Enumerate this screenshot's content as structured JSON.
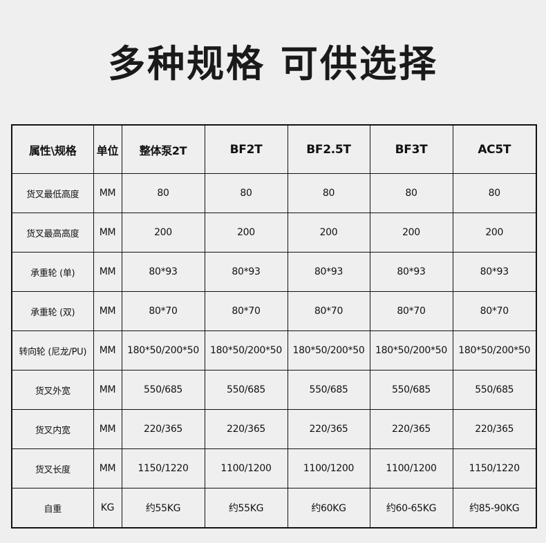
{
  "title": "多种规格 可供选择",
  "table": {
    "headers": [
      "属性\\规格",
      "单位",
      "整体泵2T",
      "BF2T",
      "BF2.5T",
      "BF3T",
      "AC5T"
    ],
    "rows": [
      [
        "货叉最低高度",
        "MM",
        "80",
        "80",
        "80",
        "80",
        "80"
      ],
      [
        "货叉最高高度",
        "MM",
        "200",
        "200",
        "200",
        "200",
        "200"
      ],
      [
        "承重轮 (单)",
        "MM",
        "80*93",
        "80*93",
        "80*93",
        "80*93",
        "80*93"
      ],
      [
        "承重轮 (双)",
        "MM",
        "80*70",
        "80*70",
        "80*70",
        "80*70",
        "80*70"
      ],
      [
        "转向轮 (尼龙/PU)",
        "MM",
        "180*50/200*50",
        "180*50/200*50",
        "180*50/200*50",
        "180*50/200*50",
        "180*50/200*50"
      ],
      [
        "货叉外宽",
        "MM",
        "550/685",
        "550/685",
        "550/685",
        "550/685",
        "550/685"
      ],
      [
        "货叉内宽",
        "MM",
        "220/365",
        "220/365",
        "220/365",
        "220/365",
        "220/365"
      ],
      [
        "货叉长度",
        "MM",
        "1150/1220",
        "1100/1200",
        "1100/1200",
        "1100/1200",
        "1150/1220"
      ],
      [
        "自重",
        "KG",
        "约55KG",
        "约55KG",
        "约60KG",
        "约60-65KG",
        "约85-90KG"
      ]
    ]
  }
}
